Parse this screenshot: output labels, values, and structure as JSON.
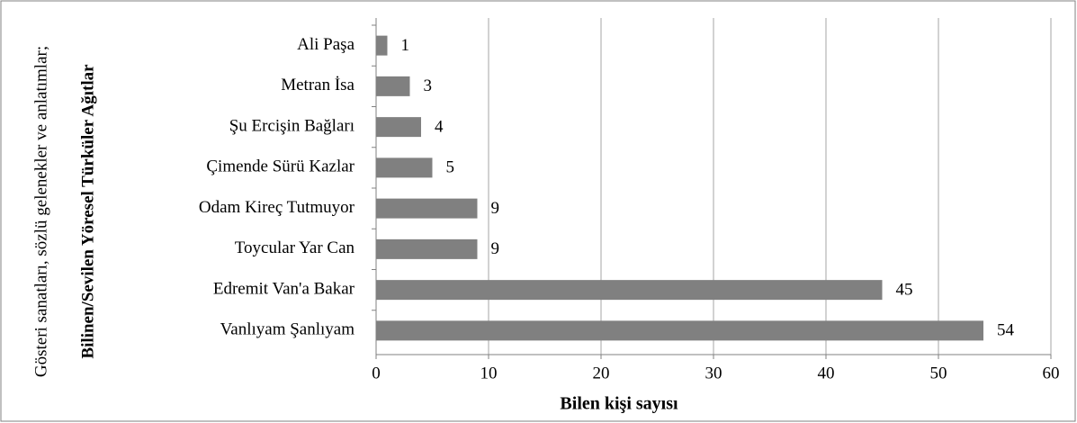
{
  "chart_data": {
    "type": "barh",
    "categories": [
      "Ali Paşa",
      "Metran İsa",
      "Şu Ercişin Bağları",
      "Çimende Sürü Kazlar",
      "Odam Kireç Tutmuyor",
      "Toycular Yar Can",
      "Edremit Van'a Bakar",
      "Vanlıyam Şanlıyam"
    ],
    "values": [
      1,
      3,
      4,
      5,
      9,
      9,
      45,
      54
    ],
    "color": "#808080",
    "xlabel": "Bilen kişi sayısı",
    "ylabel_lines": [
      "Gösteri sanatları, sözlü gelenekler ve anlatımlar;",
      "Bilinen/Sevilen Yöresel Türküler Ağıtlar"
    ],
    "xlim": [
      0,
      60
    ],
    "xticks": [
      0,
      10,
      20,
      30,
      40,
      50,
      60
    ],
    "grid": true
  }
}
